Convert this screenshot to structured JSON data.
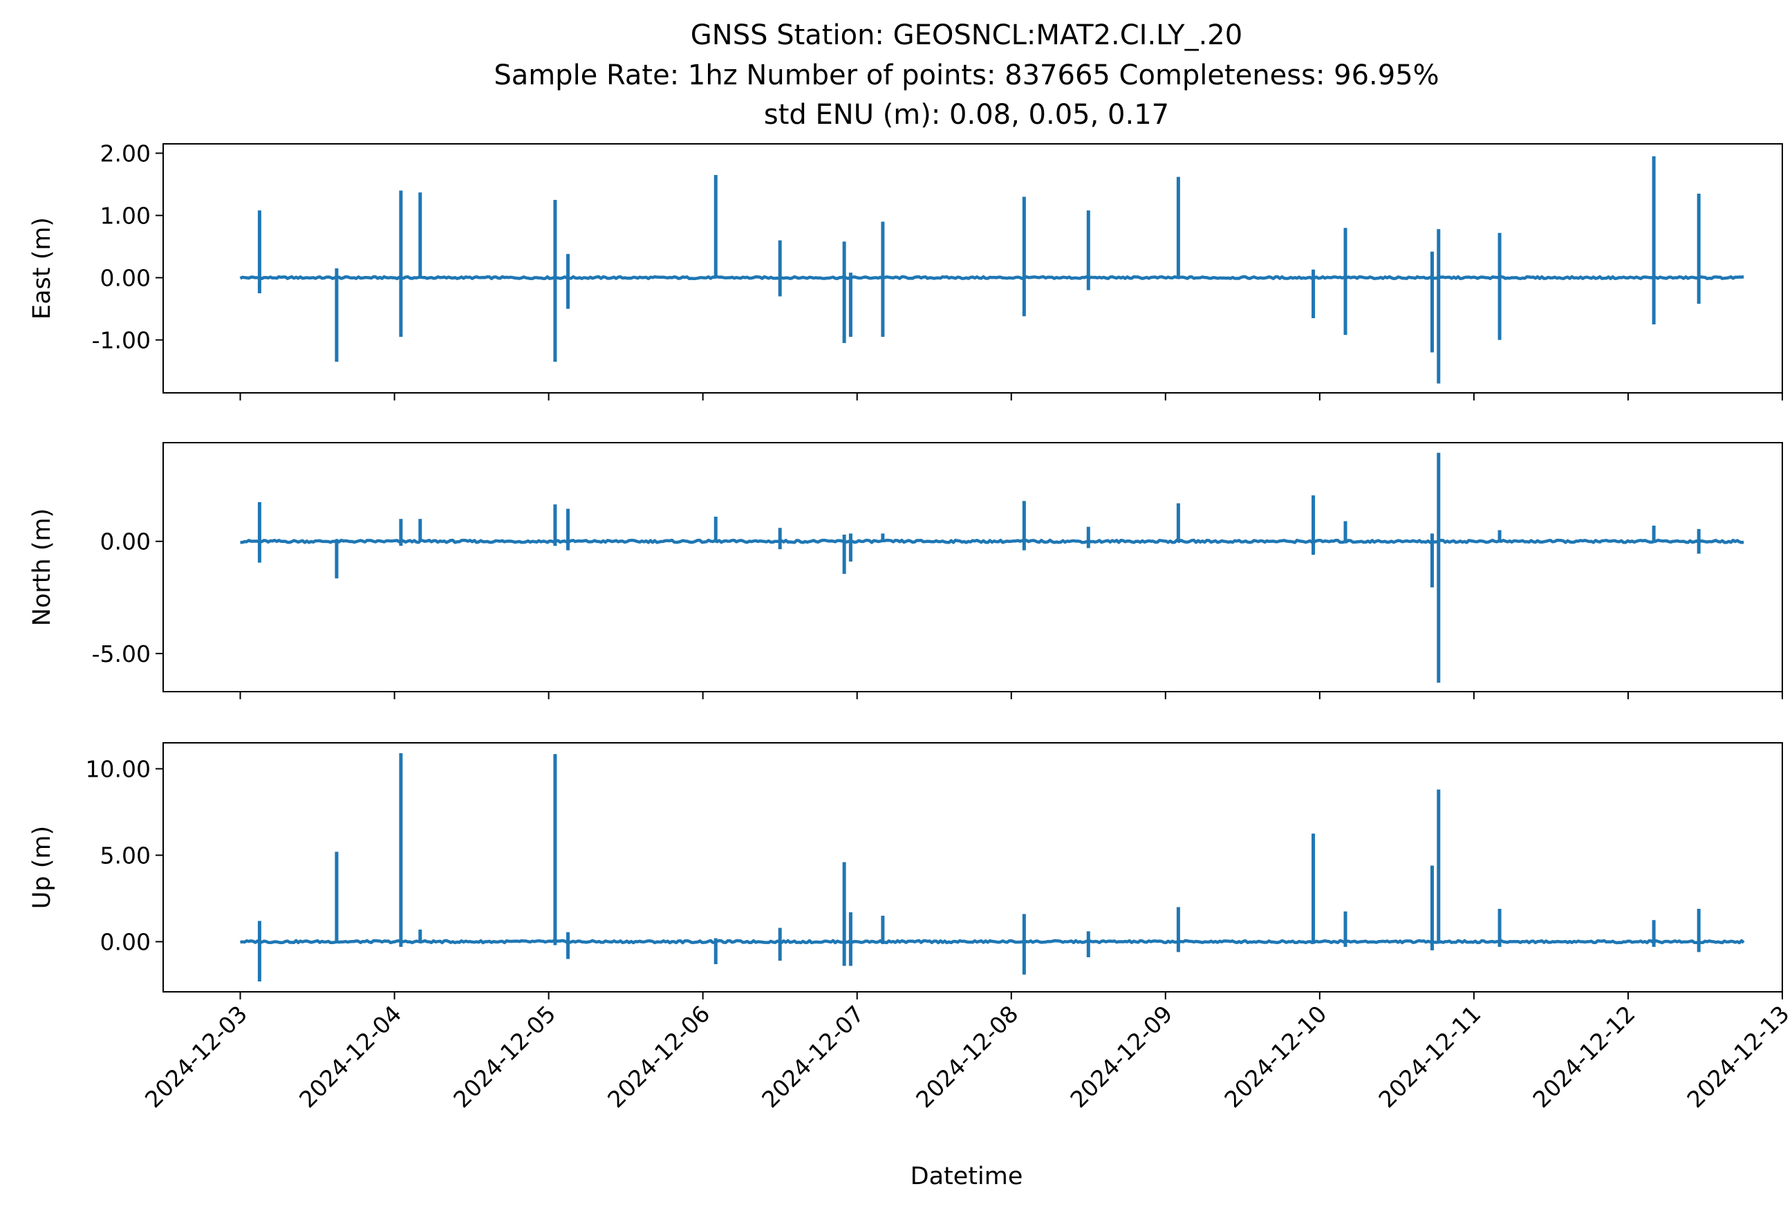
{
  "title": {
    "line1": "GNSS Station: GEOSNCL:MAT2.CI.LY_.20",
    "line2": "Sample Rate: 1hz   Number of points: 837665    Completeness:  96.95%",
    "line3": "std ENU (m):  0.08, 0.05, 0.17"
  },
  "colors": {
    "series": "#1f77b4",
    "axes": "#000000",
    "background": "#ffffff"
  },
  "chart_data": {
    "type": "line",
    "xlabel": "Datetime",
    "x_ticks": [
      "2024-12-03",
      "2024-12-04",
      "2024-12-05",
      "2024-12-06",
      "2024-12-07",
      "2024-12-08",
      "2024-12-09",
      "2024-12-10",
      "2024-12-11",
      "2024-12-12",
      "2024-12-13"
    ],
    "xlim": [
      "2024-12-02 12:00",
      "2024-12-13 00:00"
    ],
    "data_start": "2024-12-03 00:00",
    "data_end": "2024-12-12 18:00",
    "grid": false,
    "panels": [
      {
        "name": "East (m)",
        "ylabel": "East (m)",
        "ylim": [
          -1.85,
          2.15
        ],
        "yticks": [
          2.0,
          1.0,
          0.0,
          -1.0
        ],
        "ytick_labels": [
          "2.00",
          "1.00",
          "0.00",
          "-1.00"
        ],
        "spikes": [
          {
            "t": "2024-12-03 03:00",
            "min": -0.25,
            "max": 1.08
          },
          {
            "t": "2024-12-03 15:00",
            "min": -1.35,
            "max": 0.15
          },
          {
            "t": "2024-12-04 01:00",
            "min": -0.95,
            "max": 1.4
          },
          {
            "t": "2024-12-04 04:00",
            "min": 0.0,
            "max": 1.37
          },
          {
            "t": "2024-12-05 01:00",
            "min": -1.35,
            "max": 1.25
          },
          {
            "t": "2024-12-05 03:00",
            "min": -0.5,
            "max": 0.38
          },
          {
            "t": "2024-12-06 02:00",
            "min": 0.0,
            "max": 1.65
          },
          {
            "t": "2024-12-06 12:00",
            "min": -0.3,
            "max": 0.6
          },
          {
            "t": "2024-12-06 22:00",
            "min": -1.05,
            "max": 0.58
          },
          {
            "t": "2024-12-06 23:00",
            "min": -0.95,
            "max": 0.08
          },
          {
            "t": "2024-12-07 04:00",
            "min": -0.95,
            "max": 0.9
          },
          {
            "t": "2024-12-08 02:00",
            "min": -0.62,
            "max": 1.3
          },
          {
            "t": "2024-12-08 12:00",
            "min": -0.2,
            "max": 1.08
          },
          {
            "t": "2024-12-09 02:00",
            "min": 0.0,
            "max": 1.62
          },
          {
            "t": "2024-12-09 23:00",
            "min": -0.65,
            "max": 0.13
          },
          {
            "t": "2024-12-10 04:00",
            "min": -0.92,
            "max": 0.8
          },
          {
            "t": "2024-12-10 17:30",
            "min": -1.2,
            "max": 0.42
          },
          {
            "t": "2024-12-10 18:30",
            "min": -1.7,
            "max": 0.78
          },
          {
            "t": "2024-12-11 04:00",
            "min": -1.0,
            "max": 0.72
          },
          {
            "t": "2024-12-12 04:00",
            "min": -0.75,
            "max": 1.95
          },
          {
            "t": "2024-12-12 11:00",
            "min": -0.42,
            "max": 1.35
          }
        ]
      },
      {
        "name": "North (m)",
        "ylabel": "North (m)",
        "ylim": [
          -6.7,
          4.4
        ],
        "yticks": [
          0.0,
          -5.0
        ],
        "ytick_labels": [
          "0.00",
          "-5.00"
        ],
        "spikes": [
          {
            "t": "2024-12-03 03:00",
            "min": -0.95,
            "max": 1.75
          },
          {
            "t": "2024-12-03 15:00",
            "min": -1.65,
            "max": 0.0
          },
          {
            "t": "2024-12-04 01:00",
            "min": -0.2,
            "max": 1.0
          },
          {
            "t": "2024-12-04 04:00",
            "min": 0.0,
            "max": 1.0
          },
          {
            "t": "2024-12-05 01:00",
            "min": -0.2,
            "max": 1.65
          },
          {
            "t": "2024-12-05 03:00",
            "min": -0.4,
            "max": 1.45
          },
          {
            "t": "2024-12-06 02:00",
            "min": 0.0,
            "max": 1.1
          },
          {
            "t": "2024-12-06 12:00",
            "min": -0.35,
            "max": 0.6
          },
          {
            "t": "2024-12-06 22:00",
            "min": -1.45,
            "max": 0.3
          },
          {
            "t": "2024-12-06 23:00",
            "min": -0.9,
            "max": 0.35
          },
          {
            "t": "2024-12-07 04:00",
            "min": 0.0,
            "max": 0.35
          },
          {
            "t": "2024-12-08 02:00",
            "min": -0.4,
            "max": 1.8
          },
          {
            "t": "2024-12-08 12:00",
            "min": -0.3,
            "max": 0.65
          },
          {
            "t": "2024-12-09 02:00",
            "min": 0.0,
            "max": 1.7
          },
          {
            "t": "2024-12-09 23:00",
            "min": -0.6,
            "max": 2.05
          },
          {
            "t": "2024-12-10 04:00",
            "min": 0.0,
            "max": 0.9
          },
          {
            "t": "2024-12-10 17:30",
            "min": -2.05,
            "max": 0.35
          },
          {
            "t": "2024-12-10 18:30",
            "min": -6.3,
            "max": 3.95
          },
          {
            "t": "2024-12-11 04:00",
            "min": 0.0,
            "max": 0.5
          },
          {
            "t": "2024-12-12 04:00",
            "min": 0.0,
            "max": 0.7
          },
          {
            "t": "2024-12-12 11:00",
            "min": -0.55,
            "max": 0.55
          }
        ]
      },
      {
        "name": "Up (m)",
        "ylabel": "Up (m)",
        "ylim": [
          -2.9,
          11.5
        ],
        "yticks": [
          10.0,
          5.0,
          0.0
        ],
        "ytick_labels": [
          "10.00",
          "5.00",
          "0.00"
        ],
        "spikes": [
          {
            "t": "2024-12-03 03:00",
            "min": -2.3,
            "max": 1.2
          },
          {
            "t": "2024-12-03 15:00",
            "min": 0.0,
            "max": 5.2
          },
          {
            "t": "2024-12-04 01:00",
            "min": -0.3,
            "max": 10.9
          },
          {
            "t": "2024-12-04 04:00",
            "min": 0.0,
            "max": 0.7
          },
          {
            "t": "2024-12-05 01:00",
            "min": -0.2,
            "max": 10.85
          },
          {
            "t": "2024-12-05 03:00",
            "min": -1.0,
            "max": 0.55
          },
          {
            "t": "2024-12-06 02:00",
            "min": -1.3,
            "max": 0.2
          },
          {
            "t": "2024-12-06 12:00",
            "min": -1.1,
            "max": 0.8
          },
          {
            "t": "2024-12-06 22:00",
            "min": -1.4,
            "max": 4.6
          },
          {
            "t": "2024-12-06 23:00",
            "min": -1.4,
            "max": 1.7
          },
          {
            "t": "2024-12-07 04:00",
            "min": 0.0,
            "max": 1.5
          },
          {
            "t": "2024-12-08 02:00",
            "min": -1.9,
            "max": 1.6
          },
          {
            "t": "2024-12-08 12:00",
            "min": -0.9,
            "max": 0.6
          },
          {
            "t": "2024-12-09 02:00",
            "min": -0.6,
            "max": 2.0
          },
          {
            "t": "2024-12-09 23:00",
            "min": 0.0,
            "max": 6.25
          },
          {
            "t": "2024-12-10 04:00",
            "min": -0.3,
            "max": 1.75
          },
          {
            "t": "2024-12-10 17:30",
            "min": -0.5,
            "max": 4.4
          },
          {
            "t": "2024-12-10 18:30",
            "min": 0.0,
            "max": 8.8
          },
          {
            "t": "2024-12-11 04:00",
            "min": -0.3,
            "max": 1.9
          },
          {
            "t": "2024-12-12 04:00",
            "min": -0.3,
            "max": 1.25
          },
          {
            "t": "2024-12-12 11:00",
            "min": -0.6,
            "max": 1.9
          }
        ]
      }
    ]
  }
}
